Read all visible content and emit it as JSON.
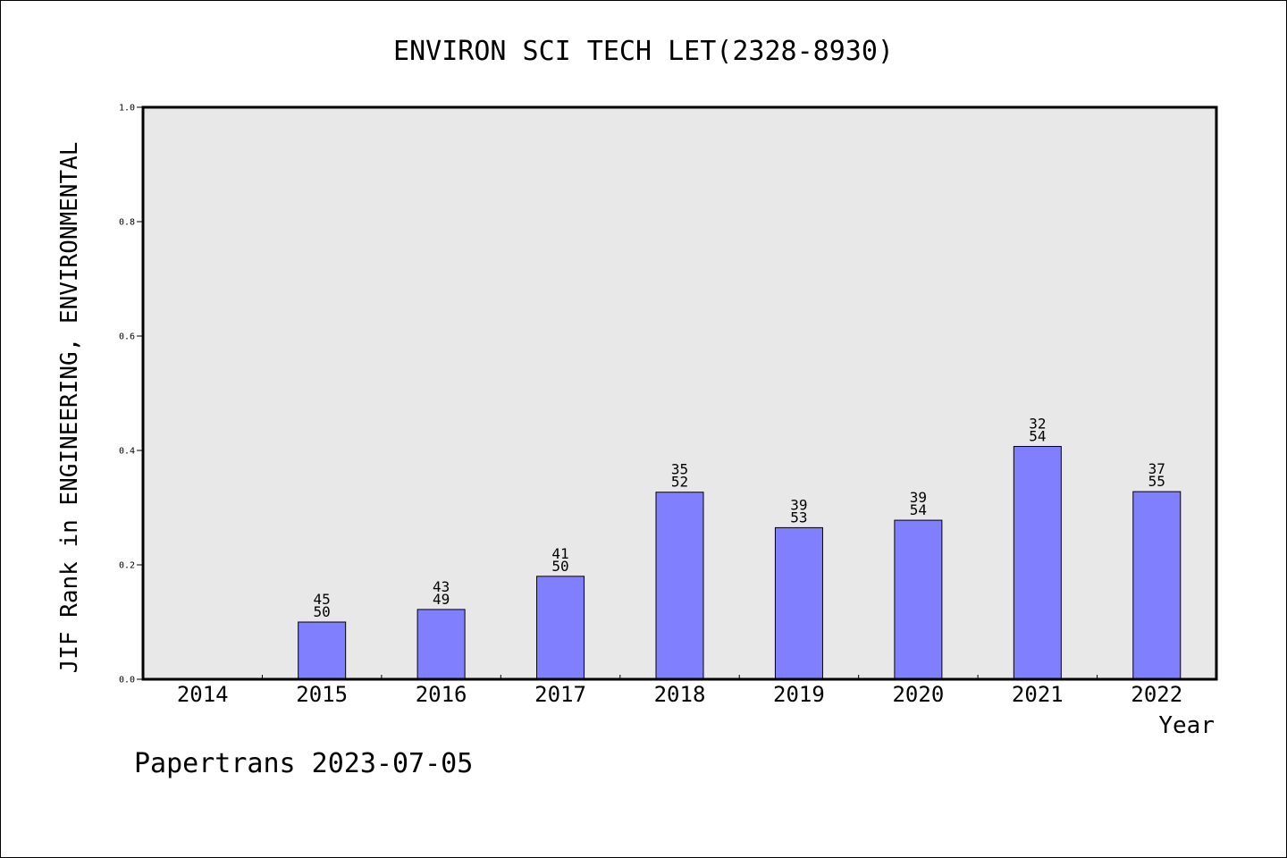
{
  "chart_data": {
    "type": "bar",
    "title": "ENVIRON SCI TECH LET(2328-8930)",
    "xlabel": "Year",
    "ylabel": "JIF Rank in ENGINEERING, ENVIRONMENTAL",
    "ylim": [
      0,
      1.0
    ],
    "yticks": [
      "0.0",
      "0.2",
      "0.4",
      "0.6",
      "0.8",
      "1.0"
    ],
    "categories": [
      "2014",
      "2015",
      "2016",
      "2017",
      "2018",
      "2019",
      "2020",
      "2021",
      "2022"
    ],
    "values": [
      null,
      0.1,
      0.122,
      0.18,
      0.327,
      0.265,
      0.278,
      0.407,
      0.328
    ],
    "labels_top": [
      "",
      "45",
      "43",
      "41",
      "35",
      "39",
      "39",
      "32",
      "37"
    ],
    "labels_bottom": [
      "",
      "50",
      "49",
      "50",
      "52",
      "53",
      "54",
      "54",
      "55"
    ],
    "grid": false,
    "colors": {
      "bar": "#8080ff",
      "plot_bg": "#e8e8e8",
      "axis": "#000000"
    }
  },
  "footer": {
    "text": "Papertrans 2023-07-05"
  }
}
